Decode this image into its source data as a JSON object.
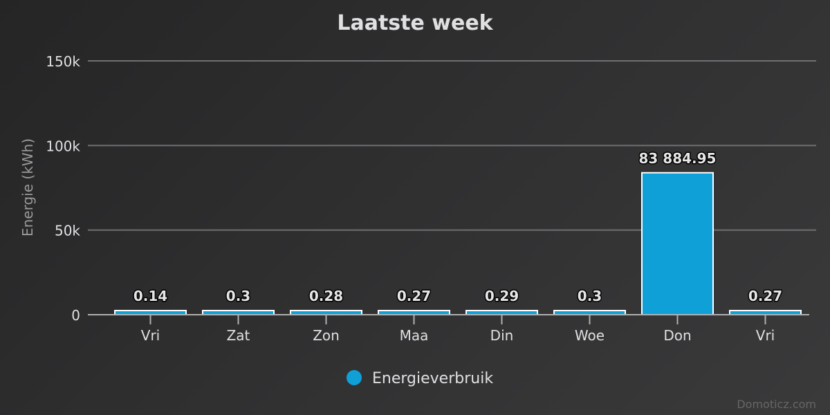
{
  "chart_data": {
    "type": "bar",
    "title": "Laatste week",
    "ylabel": "Energie (kWh)",
    "xlabel": "",
    "categories": [
      "Vri",
      "Zat",
      "Zon",
      "Maa",
      "Din",
      "Woe",
      "Don",
      "Vri"
    ],
    "series": [
      {
        "name": "Energieverbruik",
        "values": [
          0.14,
          0.3,
          0.28,
          0.27,
          0.29,
          0.3,
          83884.95,
          0.27
        ],
        "data_labels": [
          "0.14",
          "0.3",
          "0.28",
          "0.27",
          "0.29",
          "0.3",
          "83 884.95",
          "0.27"
        ],
        "color": "#0fa0d8"
      }
    ],
    "ylim": [
      0,
      150000
    ],
    "yticks": [
      0,
      50000,
      100000,
      150000
    ],
    "ytick_labels": [
      "0",
      "50k",
      "100k",
      "150k"
    ],
    "grid": true,
    "legend_position": "bottom-center",
    "colors": {
      "background": "#2d2d2e",
      "gridline": "#707073",
      "text": "#e0e0e3",
      "bar_border": "#ffffff"
    }
  },
  "credits": "Domoticz.com"
}
